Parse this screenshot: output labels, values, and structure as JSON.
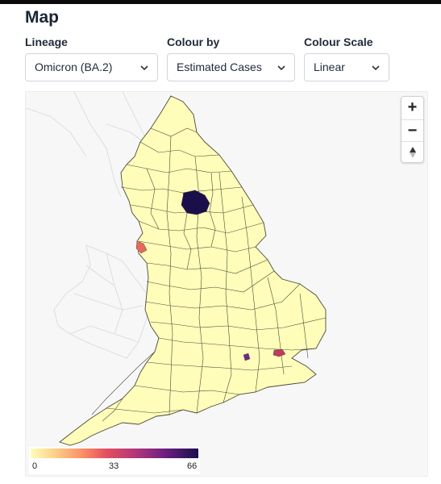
{
  "page": {
    "title": "Map"
  },
  "controls": {
    "lineage": {
      "label": "Lineage",
      "value": "Omicron (BA.2)"
    },
    "colour_by": {
      "label": "Colour by",
      "value": "Estimated Cases"
    },
    "colour_scale": {
      "label": "Colour Scale",
      "value": "Linear"
    }
  },
  "map": {
    "zoom_in": "+",
    "zoom_out": "−",
    "reset_north": "▲",
    "legend": {
      "min": "0",
      "mid": "33",
      "max": "66"
    },
    "colors": {
      "low": "#fffdb9",
      "high": "#1b0f4b",
      "border": "#4a4a3a",
      "neighbour_outline": "#d8d8d8",
      "water": "#f7f7f7"
    }
  }
}
